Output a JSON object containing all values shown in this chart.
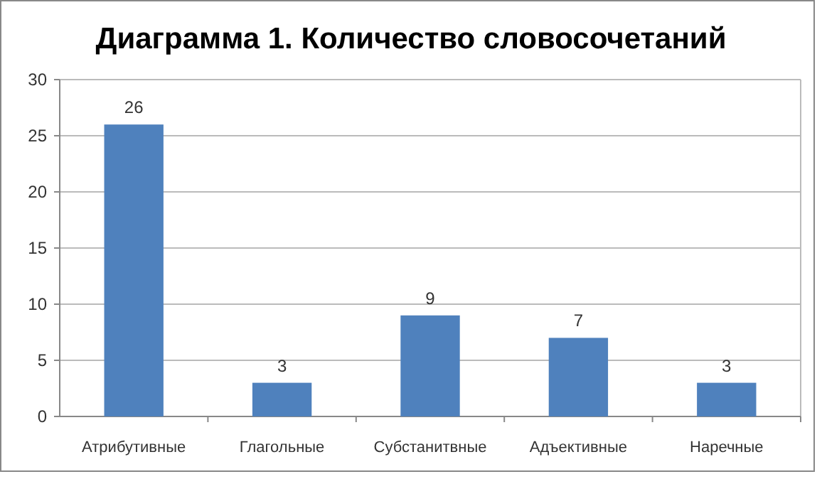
{
  "chart_data": {
    "type": "bar",
    "title": "Диаграмма 1. Количество словосочетаний",
    "categories": [
      "Атрибутивные",
      "Глагольные",
      "Субстанитвные",
      "Адъективные",
      "Наречные"
    ],
    "values": [
      26,
      3,
      9,
      7,
      3
    ],
    "color": "#4f81bd",
    "ylim": [
      0,
      30
    ],
    "yticks": [
      0,
      5,
      10,
      15,
      20,
      25,
      30
    ],
    "grid": "y",
    "data_labels": true
  }
}
